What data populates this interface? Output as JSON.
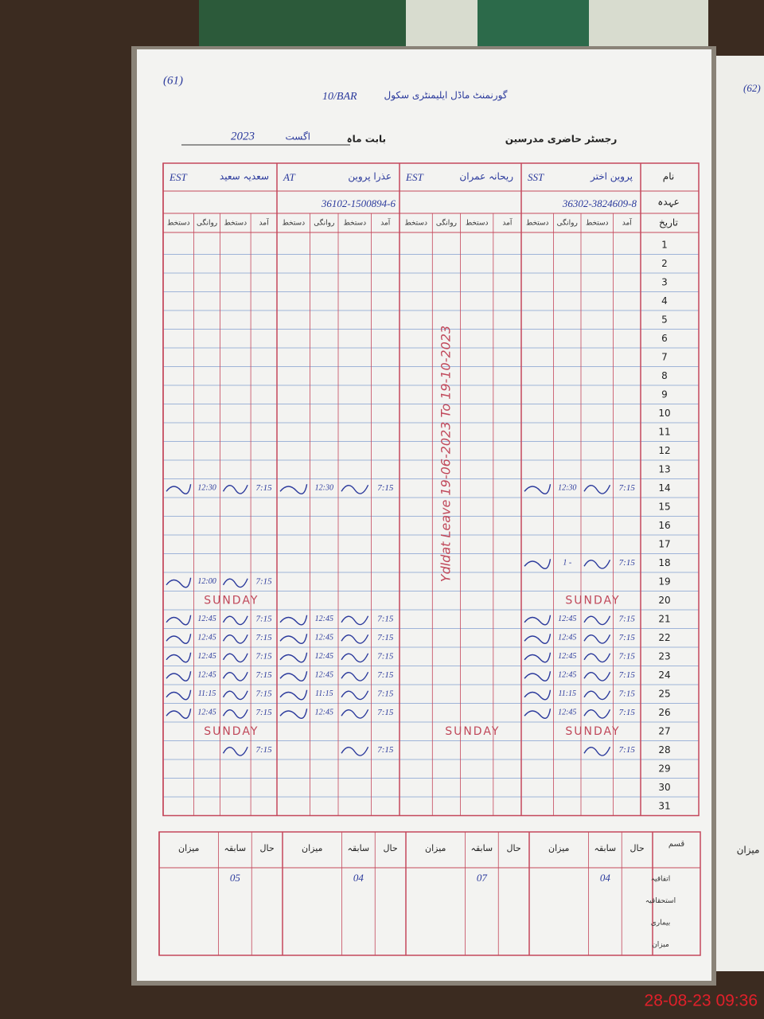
{
  "header": {
    "page_number": "(61)",
    "school_name": "گورنمنٹ ماڈل ایلیمنٹری سکول",
    "school_code": "10/BAR",
    "register_title": "رجسٹر حاضری مدرسین",
    "period_label": "بابت ماہ",
    "month": "اگست",
    "year": "2023"
  },
  "row_headers": [
    "نام",
    "عہدہ",
    "تاریخ"
  ],
  "sub_columns": [
    "آمد",
    "دستخط",
    "روانگی",
    "دستخط"
  ],
  "days": [
    1,
    2,
    3,
    4,
    5,
    6,
    7,
    8,
    9,
    10,
    11,
    12,
    13,
    14,
    15,
    16,
    17,
    18,
    19,
    20,
    21,
    22,
    23,
    24,
    25,
    26,
    27,
    28,
    29,
    30,
    31
  ],
  "teachers": [
    {
      "name": "پروین اختر",
      "designation": "SST",
      "cnic": "36302-3824609-8",
      "arrivals": [
        null,
        null,
        null,
        null,
        null,
        null,
        null,
        null,
        null,
        null,
        null,
        null,
        null,
        "7:15",
        null,
        null,
        null,
        "7:15",
        null,
        null,
        "7:15",
        "7:15",
        "7:15",
        "7:15",
        "7:15",
        "7:15",
        null,
        "7:15",
        null,
        null,
        null
      ],
      "departures": [
        null,
        null,
        null,
        null,
        null,
        null,
        null,
        null,
        null,
        null,
        null,
        null,
        null,
        "12:30",
        null,
        null,
        null,
        "1 -",
        null,
        null,
        "12:45",
        "12:45",
        "12:45",
        "12:45",
        "11:15",
        "12:45",
        null,
        null,
        null,
        null,
        null
      ],
      "notes": [
        null,
        null,
        null,
        null,
        null,
        null,
        null,
        null,
        null,
        null,
        null,
        null,
        null,
        null,
        null,
        null,
        null,
        null,
        null,
        "SUNDAY",
        null,
        null,
        null,
        null,
        null,
        null,
        "SUNDAY",
        null,
        null,
        null,
        null
      ]
    },
    {
      "name": "ریحانہ عمران",
      "designation": "EST",
      "cnic": null,
      "leave_note": "Ydldat Leave 19-06-2023 To 19-10-2023",
      "notes": [
        null,
        null,
        null,
        null,
        null,
        null,
        null,
        null,
        null,
        null,
        null,
        null,
        null,
        null,
        null,
        null,
        null,
        null,
        null,
        null,
        null,
        null,
        null,
        null,
        null,
        null,
        "SUNDAY",
        null,
        null,
        null,
        null
      ]
    },
    {
      "name": "عذرا پروین",
      "designation": "AT",
      "cnic": "36102-1500894-6",
      "arrivals": [
        null,
        null,
        null,
        null,
        null,
        null,
        null,
        null,
        null,
        null,
        null,
        null,
        null,
        "7:15",
        null,
        null,
        null,
        null,
        null,
        null,
        "7:15",
        "7:15",
        "7:15",
        "7:15",
        "7:15",
        "7:15",
        null,
        "7:15",
        null,
        null,
        null
      ],
      "departures": [
        null,
        null,
        null,
        null,
        null,
        null,
        null,
        null,
        null,
        null,
        null,
        null,
        null,
        "12:30",
        null,
        null,
        null,
        null,
        null,
        null,
        "12:45",
        "12:45",
        "12:45",
        "12:45",
        "11:15",
        "12:45",
        null,
        null,
        null,
        null,
        null
      ]
    },
    {
      "name": "سعدیہ سعید",
      "designation": "EST",
      "cnic": null,
      "arrivals": [
        null,
        null,
        null,
        null,
        null,
        null,
        null,
        null,
        null,
        null,
        null,
        null,
        null,
        "7:15",
        null,
        null,
        null,
        null,
        "7:15",
        null,
        "7:15",
        "7:15",
        "7:15",
        "7:15",
        "7:15",
        "7:15",
        null,
        "7:15",
        null,
        null,
        null
      ],
      "departures": [
        null,
        null,
        null,
        null,
        null,
        null,
        null,
        null,
        null,
        null,
        null,
        null,
        null,
        "12:30",
        null,
        null,
        null,
        null,
        "12:00",
        null,
        "12:45",
        "12:45",
        "12:45",
        "12:45",
        "11:15",
        "12:45",
        null,
        null,
        null,
        null,
        null
      ],
      "notes": [
        null,
        null,
        null,
        null,
        null,
        null,
        null,
        null,
        null,
        null,
        null,
        null,
        null,
        null,
        null,
        null,
        null,
        null,
        null,
        "SUNDAY",
        null,
        null,
        null,
        null,
        null,
        null,
        "SUNDAY",
        null,
        null,
        null,
        null
      ]
    }
  ],
  "summary": {
    "corner": "قسم",
    "headers": [
      "حال",
      "سابقہ",
      "میزان"
    ],
    "row_labels": [
      "اتفاقیہ",
      "استحقاقیہ",
      "بیماری",
      "میزان"
    ],
    "previous": [
      "04",
      "07",
      "04",
      "05"
    ]
  },
  "next_page": {
    "page_number": "(62)",
    "label": "میزان"
  },
  "timestamp": "28-08-23  09:36"
}
